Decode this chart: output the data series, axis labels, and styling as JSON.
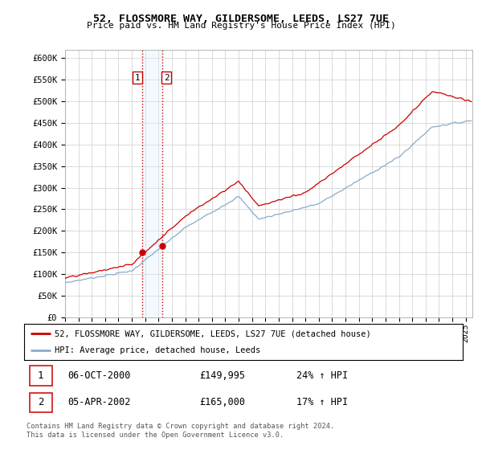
{
  "title_line1": "52, FLOSSMORE WAY, GILDERSOME, LEEDS, LS27 7UE",
  "title_line2": "Price paid vs. HM Land Registry's House Price Index (HPI)",
  "yticks": [
    0,
    50000,
    100000,
    150000,
    200000,
    250000,
    300000,
    350000,
    400000,
    450000,
    500000,
    550000,
    600000
  ],
  "ytick_labels": [
    "£0",
    "£50K",
    "£100K",
    "£150K",
    "£200K",
    "£250K",
    "£300K",
    "£350K",
    "£400K",
    "£450K",
    "£500K",
    "£550K",
    "£600K"
  ],
  "xmin": 1995.0,
  "xmax": 2025.5,
  "ymin": 0,
  "ymax": 620000,
  "transaction1_x": 2000.75,
  "transaction1_y": 149995,
  "transaction2_x": 2002.25,
  "transaction2_y": 165000,
  "transaction1_label": "1",
  "transaction2_label": "2",
  "transaction1_date": "06-OCT-2000",
  "transaction1_price": "£149,995",
  "transaction1_hpi": "24% ↑ HPI",
  "transaction2_date": "05-APR-2002",
  "transaction2_price": "£165,000",
  "transaction2_hpi": "17% ↑ HPI",
  "line1_color": "#cc0000",
  "line2_color": "#88aacc",
  "vline_color": "#cc0000",
  "highlight_color": "#ddeeff",
  "legend_label1": "52, FLOSSMORE WAY, GILDERSOME, LEEDS, LS27 7UE (detached house)",
  "legend_label2": "HPI: Average price, detached house, Leeds",
  "footnote": "Contains HM Land Registry data © Crown copyright and database right 2024.\nThis data is licensed under the Open Government Licence v3.0.",
  "background_color": "#ffffff",
  "grid_color": "#cccccc"
}
